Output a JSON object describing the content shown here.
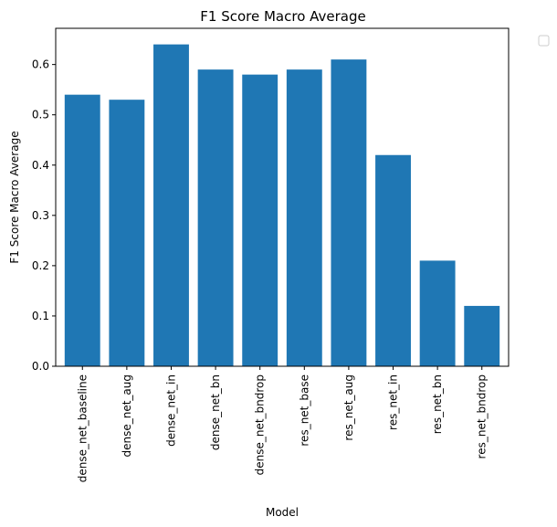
{
  "chart_data": {
    "type": "bar",
    "title": "F1 Score Macro Average",
    "xlabel": "Model",
    "ylabel": "F1 Score Macro Average",
    "categories": [
      "dense_net_baseline",
      "dense_net_aug",
      "dense_net_in",
      "dense_net_bn",
      "dense_net_bndrop",
      "res_net_base",
      "res_net_aug",
      "res_net_in",
      "res_net_bn",
      "res_net_bndrop"
    ],
    "values": [
      0.54,
      0.53,
      0.64,
      0.59,
      0.58,
      0.59,
      0.61,
      0.42,
      0.21,
      0.12
    ],
    "ylim": [
      0,
      0.672
    ],
    "yticks": [
      0.0,
      0.1,
      0.2,
      0.3,
      0.4,
      0.5,
      0.6
    ],
    "ytick_labels": [
      "0.0",
      "0.1",
      "0.2",
      "0.3",
      "0.4",
      "0.5",
      "0.6"
    ],
    "grid": false,
    "legend": "empty box outside top-right",
    "bar_color": "#1f77b4"
  }
}
